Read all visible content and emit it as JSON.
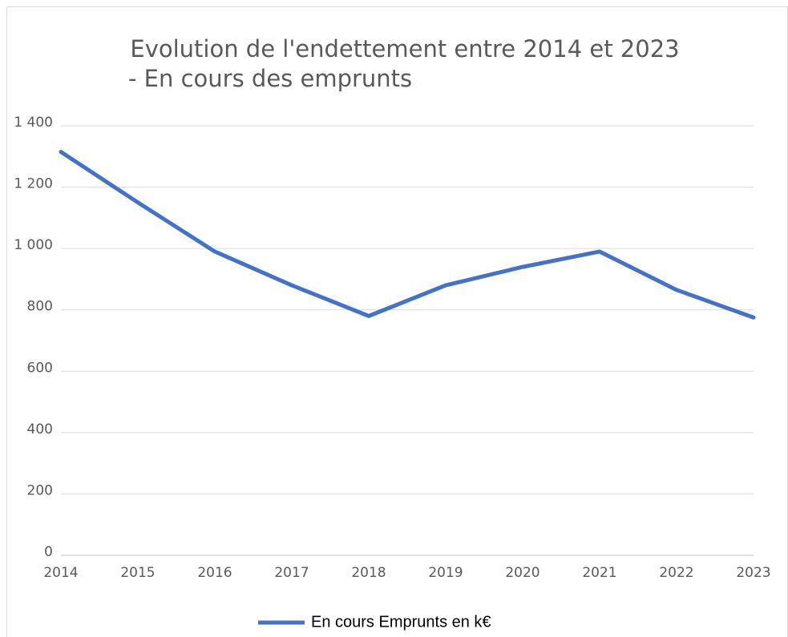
{
  "chart_data": {
    "type": "line",
    "title": "Evolution de l'endettement entre 2014 et 2023",
    "subtitle": "- En cours des emprunts",
    "x": [
      2014,
      2015,
      2016,
      2017,
      2018,
      2019,
      2020,
      2021,
      2022,
      2023
    ],
    "xlim": [
      2014,
      2023
    ],
    "xticks": [
      2014,
      2015,
      2016,
      2017,
      2018,
      2019,
      2020,
      2021,
      2022,
      2023
    ],
    "series": [
      {
        "name": "En cours Emprunts en k€",
        "color": "#4472c4",
        "values": [
          1315,
          1150,
          990,
          880,
          780,
          880,
          940,
          990,
          865,
          775
        ]
      }
    ],
    "ylim": [
      0,
      1400
    ],
    "yticks": [
      0,
      200,
      400,
      600,
      800,
      {
        "value": 1000,
        "label": "1 000"
      },
      {
        "value": 1200,
        "label": "1 200"
      },
      {
        "value": 1400,
        "label": "1 400"
      }
    ],
    "grid": true,
    "legend": "bottom"
  }
}
